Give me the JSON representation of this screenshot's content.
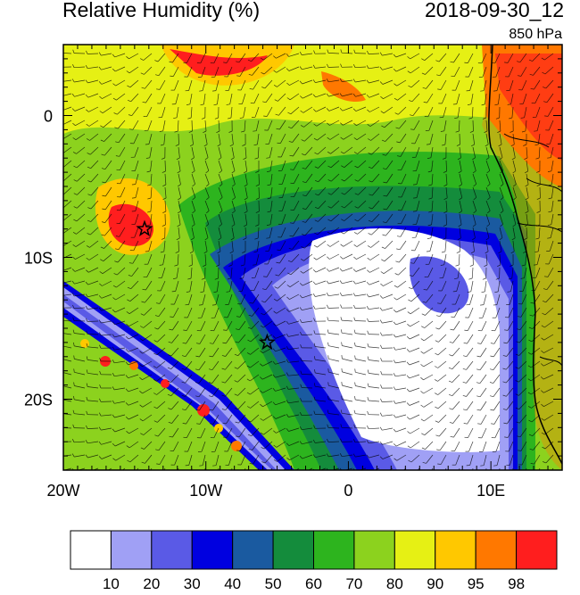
{
  "header": {
    "title": "Relative Humidity (%)",
    "datetime": "2018-09-30_12",
    "level": "850 hPa"
  },
  "map": {
    "lon_range": [
      -20,
      15
    ],
    "lat_range": [
      -25,
      5
    ],
    "x_ticks": [
      {
        "value": -20,
        "label": "20W"
      },
      {
        "value": -10,
        "label": "10W"
      },
      {
        "value": 0,
        "label": "0"
      },
      {
        "value": 10,
        "label": "10E"
      }
    ],
    "y_ticks": [
      {
        "value": 0,
        "label": "0"
      },
      {
        "value": -10,
        "label": "10S"
      },
      {
        "value": -20,
        "label": "20S"
      }
    ],
    "markers": [
      {
        "name": "star-1",
        "lon": -14.3,
        "lat": -8.0
      },
      {
        "name": "star-2",
        "lon": -5.7,
        "lat": -16.0
      }
    ]
  },
  "colorbar": {
    "labels": [
      "10",
      "20",
      "30",
      "40",
      "50",
      "60",
      "70",
      "80",
      "90",
      "95",
      "98"
    ],
    "colors": [
      "#ffffff",
      "#a0a0f5",
      "#5a5ae6",
      "#0000e0",
      "#1a5aa0",
      "#148c3c",
      "#2db41e",
      "#8cd21e",
      "#e6f014",
      "#ffc800",
      "#ff7800",
      "#ff1e1e"
    ]
  }
}
